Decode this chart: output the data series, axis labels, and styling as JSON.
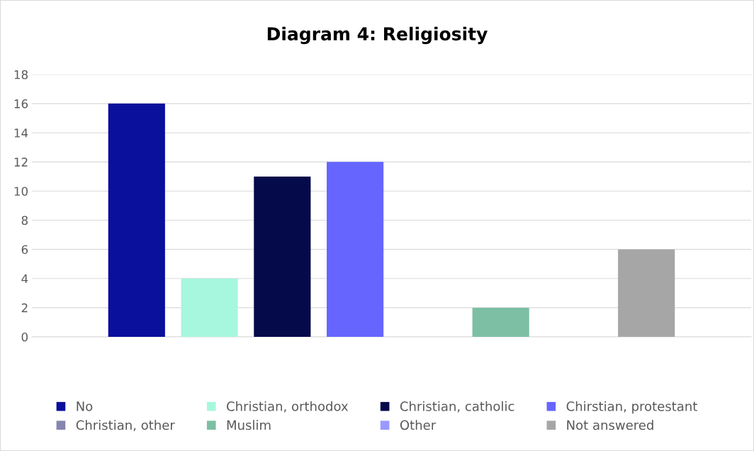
{
  "chart_data": {
    "type": "bar",
    "title": "Diagram 4: Religiosity",
    "categories": [
      null
    ],
    "series": [
      {
        "name": "No",
        "color": "#0a0f9c",
        "values": [
          16
        ]
      },
      {
        "name": "Christian, orthodox",
        "color": "#a6f7de",
        "values": [
          4
        ]
      },
      {
        "name": "Christian, catholic",
        "color": "#050a4a",
        "values": [
          11
        ]
      },
      {
        "name": "Chirstian, protestant",
        "color": "#6666ff",
        "values": [
          12
        ]
      },
      {
        "name": "Christian, other",
        "color": "#8585b0",
        "values": [
          0
        ]
      },
      {
        "name": "Muslim",
        "color": "#7dbfa4",
        "values": [
          2
        ]
      },
      {
        "name": "Other",
        "color": "#9999ff",
        "values": [
          0
        ]
      },
      {
        "name": "Not answered",
        "color": "#a6a6a6",
        "values": [
          6
        ]
      }
    ],
    "ylim": [
      0,
      18
    ],
    "yticks": [
      0,
      2,
      4,
      6,
      8,
      10,
      12,
      14,
      16,
      18
    ],
    "grid": "y",
    "legend": "bottom"
  }
}
